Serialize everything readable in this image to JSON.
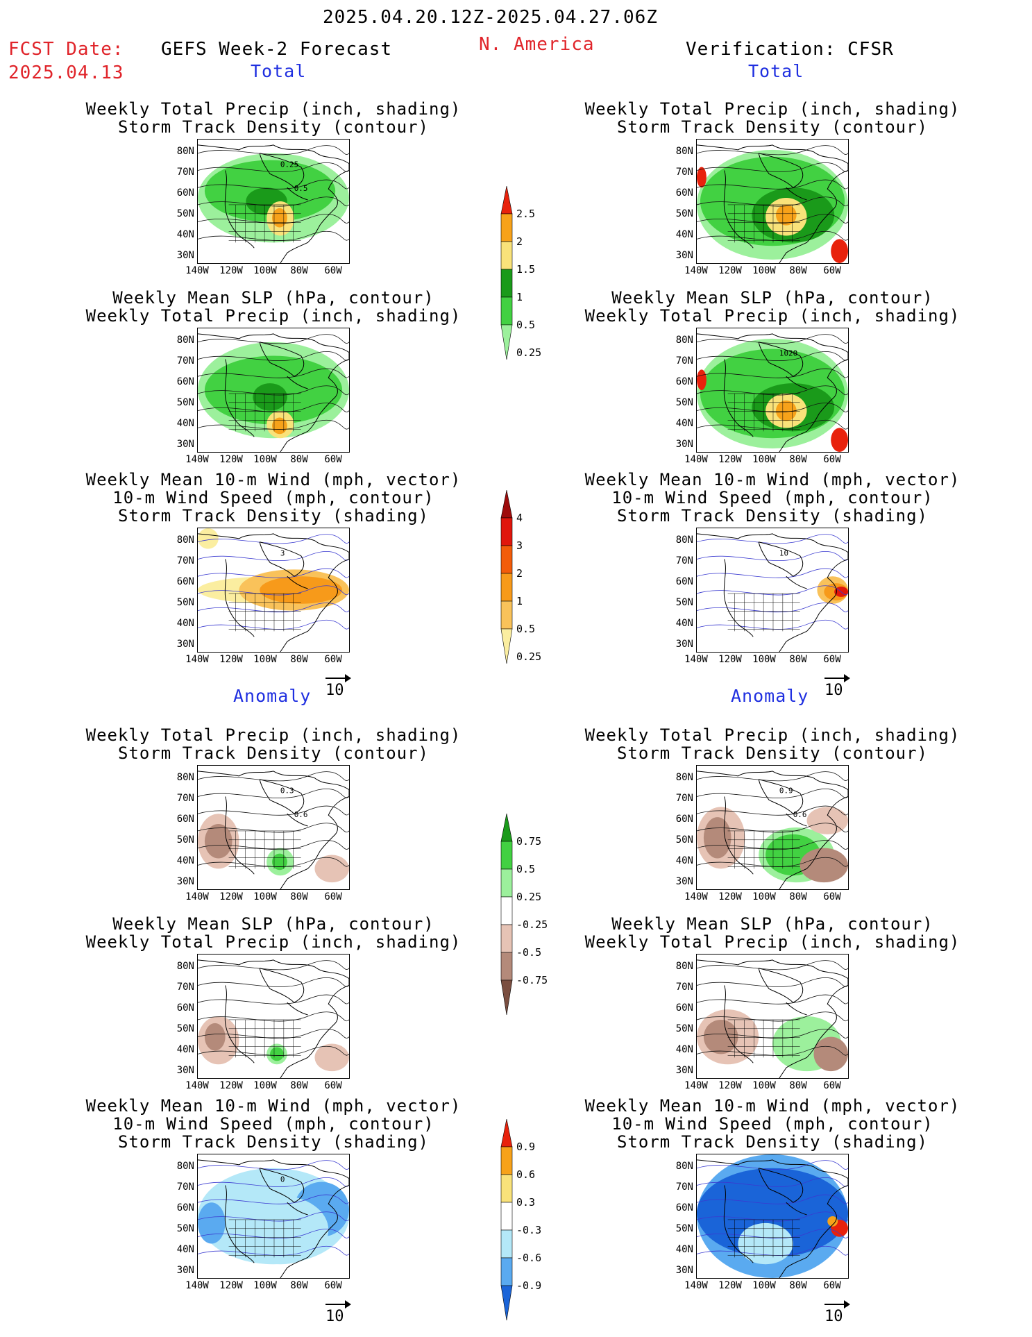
{
  "header": {
    "date_range": "2025.04.20.12Z-2025.04.27.06Z",
    "fcst_label": "FCST Date:",
    "fcst_date": "2025.04.13",
    "left_model": "GEFS Week-2 Forecast",
    "region": "N. America",
    "right_model": "Verification: CFSR"
  },
  "sections": {
    "total": "Total",
    "anomaly": "Anomaly"
  },
  "titles": {
    "precip_track": [
      "Weekly Total Precip (inch, shading)",
      "Storm Track Density (contour)"
    ],
    "slp_precip": [
      "Weekly Mean SLP (hPa, contour)",
      "Weekly Total Precip (inch, shading)"
    ],
    "wind_track": [
      "Weekly Mean 10-m Wind (mph, vector)",
      "10-m Wind Speed (mph, contour)",
      "Storm Track Density (shading)"
    ]
  },
  "axes": {
    "lat_labels": [
      "80N",
      "70N",
      "60N",
      "50N",
      "40N",
      "30N"
    ],
    "lon_labels": [
      "140W",
      "120W",
      "100W",
      "80W",
      "60W"
    ]
  },
  "vector_ref": "10",
  "colorbars": {
    "precip_total": {
      "labels": [
        "2.5",
        "2",
        "1.5",
        "1",
        "0.5",
        "0.25"
      ],
      "colors": [
        "#e8220c",
        "#f7a21a",
        "#f9e27a",
        "#1a9a1a",
        "#42d142",
        "#9cf09c"
      ]
    },
    "track_total": {
      "labels": [
        "4",
        "3",
        "2",
        "1",
        "0.5",
        "0.25"
      ],
      "colors": [
        "#9e0c0c",
        "#e0160c",
        "#f25c0a",
        "#f79a1a",
        "#f9c25a",
        "#fbeea0"
      ]
    },
    "precip_anom": {
      "labels": [
        "0.75",
        "0.5",
        "0.25",
        "-0.25",
        "-0.5",
        "-0.75"
      ],
      "colors": [
        "#1a9a1a",
        "#42d142",
        "#9cf09c",
        "#ffffff",
        "#e6c3b5",
        "#b48a7a",
        "#7a4e40"
      ]
    },
    "track_anom": {
      "labels": [
        "0.9",
        "0.6",
        "0.3",
        "-0.3",
        "-0.6",
        "-0.9"
      ],
      "colors": [
        "#e8220c",
        "#f7a21a",
        "#f9e27a",
        "#ffffff",
        "#b4e8f8",
        "#5aaaf0",
        "#1a64d8"
      ]
    }
  },
  "map_annotations": {
    "p1l": [
      "0.25",
      "0.5"
    ],
    "p1r": [],
    "p2r": [
      "1020"
    ],
    "p3l": [
      "3"
    ],
    "p3r": [
      "10"
    ],
    "p4l": [
      "0.3",
      "0.6"
    ],
    "p4r": [
      "0.9",
      "0.6"
    ],
    "p6l": [
      "0"
    ]
  }
}
